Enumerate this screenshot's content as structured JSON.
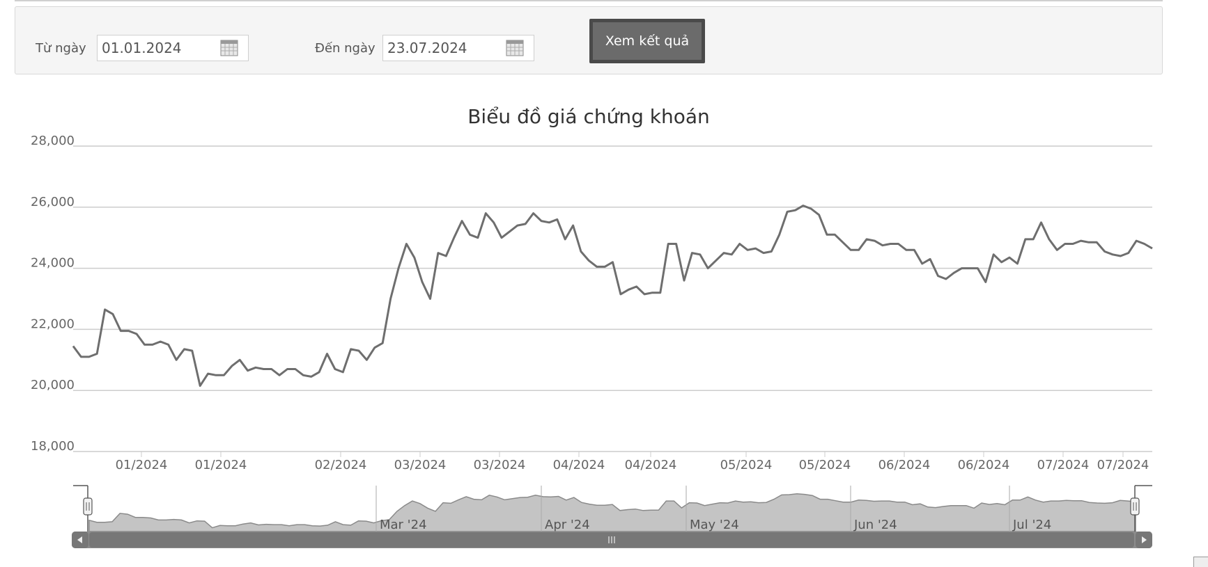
{
  "filter": {
    "from_label": "Từ ngày",
    "from_value": "01.01.2024",
    "to_label": "Đến ngày",
    "to_value": "23.07.2024",
    "submit_label": "Xem kết quả",
    "calendar_icon": "calendar-icon"
  },
  "chart_data": {
    "type": "line",
    "title": "Biểu đồ giá chứng khoán",
    "xlabel": "",
    "ylabel": "",
    "ylim": [
      18000,
      28000
    ],
    "y_ticks": [
      "28,000",
      "26,000",
      "24,000",
      "22,000",
      "20,000",
      "18,000"
    ],
    "x_ticks": [
      "01/2024",
      "01/2024",
      "02/2024",
      "03/2024",
      "03/2024",
      "04/2024",
      "04/2024",
      "05/2024",
      "05/2024",
      "06/2024",
      "06/2024",
      "07/2024",
      "07/2024"
    ],
    "grid": true,
    "line_color": "#6e6e6e",
    "series": [
      {
        "values": [
          21450,
          21100,
          21100,
          21200,
          22650,
          22500,
          21950,
          21950,
          21850,
          21500,
          21500,
          21600,
          21500,
          21000,
          21350,
          21300,
          20150,
          20550,
          20500,
          20500,
          20800,
          21000,
          20650,
          20750,
          20700,
          20700,
          20500,
          20700,
          20700,
          20500,
          20450,
          20600,
          21200,
          20700,
          20600,
          21350,
          21300,
          21000,
          21400,
          21550,
          23000,
          24000,
          24800,
          24350,
          23550,
          23000,
          24500,
          24400,
          25000,
          25550,
          25100,
          25000,
          25800,
          25500,
          25000,
          25200,
          25400,
          25450,
          25800,
          25550,
          25500,
          25600,
          24950,
          25400,
          24550,
          24250,
          24050,
          24050,
          24200,
          23150,
          23300,
          23400,
          23150,
          23200,
          23200,
          24800,
          24800,
          23600,
          24500,
          24450,
          24000,
          24250,
          24500,
          24450,
          24800,
          24600,
          24650,
          24500,
          24550,
          25100,
          25850,
          25900,
          26050,
          25950,
          25750,
          25100,
          25100,
          24850,
          24600,
          24600,
          24950,
          24900,
          24750,
          24800,
          24800,
          24600,
          24600,
          24150,
          24300,
          23750,
          23650,
          23850,
          24000,
          24000,
          24000,
          23550,
          24450,
          24200,
          24350,
          24150,
          24950,
          24950,
          25500,
          24950,
          24600,
          24800,
          24800,
          24900,
          24850,
          24850,
          24550,
          24450,
          24400,
          24500,
          24900,
          24800,
          24650
        ]
      }
    ],
    "navigator": {
      "labels": [
        "Mar '24",
        "Apr '24",
        "May '24",
        "Jun '24",
        "Jul '24"
      ]
    }
  }
}
